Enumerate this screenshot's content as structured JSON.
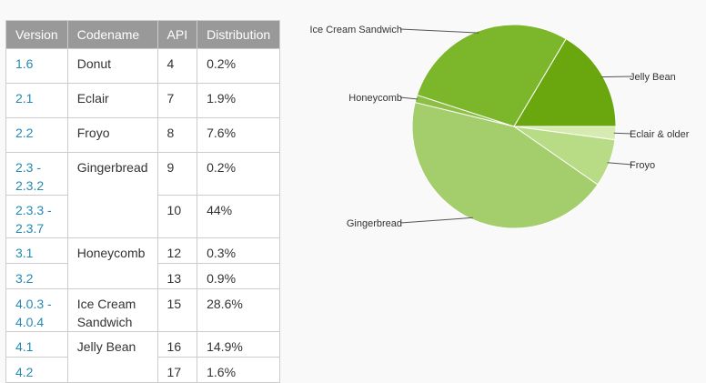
{
  "table": {
    "headers": [
      "Version",
      "Codename",
      "API",
      "Distribution"
    ],
    "rows": [
      {
        "version": "1.6",
        "codename": "Donut",
        "api": "4",
        "distribution": "0.2%"
      },
      {
        "version": "2.1",
        "codename": "Eclair",
        "api": "7",
        "distribution": "1.9%"
      },
      {
        "version": "2.2",
        "codename": "Froyo",
        "api": "8",
        "distribution": "7.6%"
      },
      {
        "version": "2.3 -\n2.3.2",
        "codename": "Gingerbread",
        "api": "9",
        "distribution": "0.2%"
      },
      {
        "version": "2.3.3 -\n2.3.7",
        "codename": "",
        "api": "10",
        "distribution": "44%"
      },
      {
        "version": "3.1",
        "codename": "Honeycomb",
        "api": "12",
        "distribution": "0.3%"
      },
      {
        "version": "3.2",
        "codename": "",
        "api": "13",
        "distribution": "0.9%"
      },
      {
        "version": "4.0.3 -\n4.0.4",
        "codename": "Ice Cream\nSandwich",
        "api": "15",
        "distribution": "28.6%"
      },
      {
        "version": "4.1",
        "codename": "Jelly Bean",
        "api": "16",
        "distribution": "14.9%"
      },
      {
        "version": "4.2",
        "codename": "",
        "api": "17",
        "distribution": "1.6%"
      }
    ]
  },
  "chart_data": {
    "type": "pie",
    "slices": [
      {
        "label": "Eclair & older",
        "value": 2.1,
        "color": "#d5ebb0"
      },
      {
        "label": "Froyo",
        "value": 7.6,
        "color": "#b8dc85"
      },
      {
        "label": "Gingerbread",
        "value": 44.2,
        "color": "#a4cd6b"
      },
      {
        "label": "Honeycomb",
        "value": 1.2,
        "color": "#8dbf47"
      },
      {
        "label": "Ice Cream Sandwich",
        "value": 28.6,
        "color": "#7cb62a"
      },
      {
        "label": "Jelly Bean",
        "value": 16.5,
        "color": "#6aa70e"
      }
    ]
  }
}
